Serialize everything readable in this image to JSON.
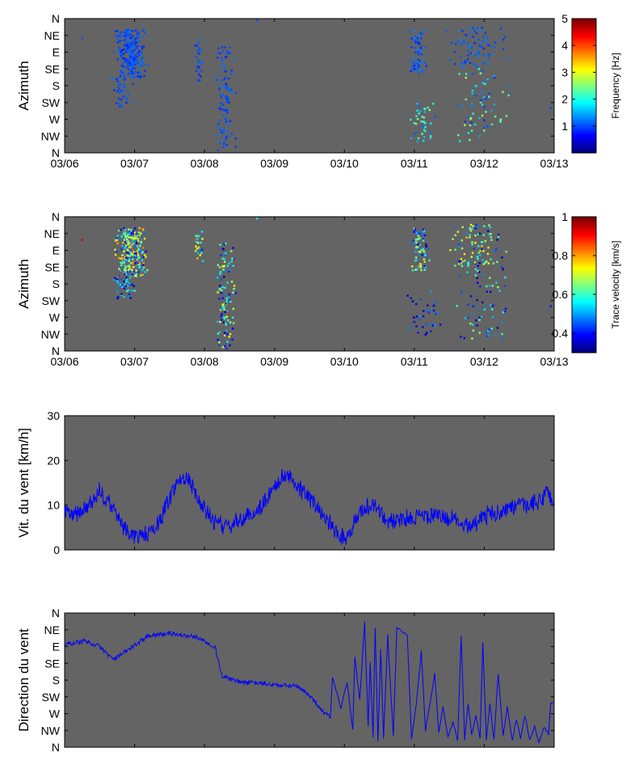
{
  "chart_data": [
    {
      "type": "scatter",
      "ylabel": "Azimuth",
      "x_tick_labels": [
        "03/06",
        "03/07",
        "03/08",
        "03/09",
        "03/10",
        "03/11",
        "03/12",
        "03/13"
      ],
      "y_tick_labels": [
        "N",
        "NW",
        "W",
        "SW",
        "S",
        "SE",
        "E",
        "NE",
        "N"
      ],
      "xlim_days": [
        6,
        13
      ],
      "ylim_deg": [
        0,
        360
      ],
      "colorbar": {
        "label": "Frequency [Hz]",
        "range": [
          0,
          5
        ],
        "ticks": [
          "1",
          "2",
          "3",
          "4",
          "5"
        ],
        "colormap": "jet"
      },
      "clusters": [
        {
          "x": [
            6.7,
            7.2
          ],
          "y": [
            200,
            330
          ],
          "c": [
            0.8,
            1.2
          ],
          "n": 260
        },
        {
          "x": [
            6.65,
            7.05
          ],
          "y": [
            120,
            200
          ],
          "c": [
            0.8,
            1.2
          ],
          "n": 40
        },
        {
          "x": [
            7.85,
            7.98
          ],
          "y": [
            190,
            320
          ],
          "c": [
            0.8,
            1.2
          ],
          "n": 25
        },
        {
          "x": [
            8.15,
            8.45
          ],
          "y": [
            5,
            290
          ],
          "c": [
            0.8,
            1.2
          ],
          "n": 110
        },
        {
          "x": [
            10.9,
            11.2
          ],
          "y": [
            210,
            330
          ],
          "c": [
            0.8,
            1.3
          ],
          "n": 70
        },
        {
          "x": [
            10.9,
            11.35
          ],
          "y": [
            30,
            140
          ],
          "c": [
            1.0,
            2.6
          ],
          "n": 40
        },
        {
          "x": [
            11.4,
            12.4
          ],
          "y": [
            230,
            340
          ],
          "c": [
            0.8,
            1.3
          ],
          "n": 90
        },
        {
          "x": [
            11.55,
            12.4
          ],
          "y": [
            30,
            230
          ],
          "c": [
            0.8,
            2.8
          ],
          "n": 70
        }
      ],
      "isolated_points": [
        [
          6.25,
          307,
          1.0
        ],
        [
          8.75,
          355,
          1.0
        ],
        [
          8.45,
          160,
          1.0
        ],
        [
          12.95,
          120,
          1.0
        ],
        [
          13.0,
          283,
          1.0
        ]
      ]
    },
    {
      "type": "scatter",
      "ylabel": "Azimuth",
      "x_tick_labels": [
        "03/06",
        "03/07",
        "03/08",
        "03/09",
        "03/10",
        "03/11",
        "03/12",
        "03/13"
      ],
      "y_tick_labels": [
        "N",
        "NW",
        "W",
        "SW",
        "S",
        "SE",
        "E",
        "NE",
        "N"
      ],
      "xlim_days": [
        6,
        13
      ],
      "ylim_deg": [
        0,
        360
      ],
      "colorbar": {
        "label": "Trace velocity [km/s]",
        "range": [
          0.3,
          1.0
        ],
        "ticks": [
          "0.4",
          "0.6",
          "0.8",
          "1"
        ],
        "colormap": "jet"
      },
      "clusters": [
        {
          "x": [
            6.7,
            7.2
          ],
          "y": [
            200,
            330
          ],
          "c": [
            0.35,
            0.85
          ],
          "n": 260
        },
        {
          "x": [
            6.65,
            7.05
          ],
          "y": [
            140,
            200
          ],
          "c": [
            0.32,
            0.6
          ],
          "n": 40
        },
        {
          "x": [
            7.85,
            7.98
          ],
          "y": [
            240,
            320
          ],
          "c": [
            0.4,
            0.8
          ],
          "n": 25
        },
        {
          "x": [
            8.15,
            8.45
          ],
          "y": [
            5,
            290
          ],
          "c": [
            0.32,
            0.75
          ],
          "n": 110
        },
        {
          "x": [
            10.9,
            11.25
          ],
          "y": [
            210,
            330
          ],
          "c": [
            0.32,
            0.8
          ],
          "n": 70
        },
        {
          "x": [
            10.9,
            11.4
          ],
          "y": [
            40,
            160
          ],
          "c": [
            0.32,
            0.5
          ],
          "n": 40
        },
        {
          "x": [
            11.4,
            12.4
          ],
          "y": [
            230,
            340
          ],
          "c": [
            0.32,
            0.8
          ],
          "n": 90
        },
        {
          "x": [
            11.55,
            12.4
          ],
          "y": [
            30,
            230
          ],
          "c": [
            0.32,
            0.7
          ],
          "n": 70
        }
      ],
      "isolated_points": [
        [
          6.25,
          298,
          0.95
        ],
        [
          8.75,
          355,
          0.55
        ],
        [
          8.45,
          155,
          0.4
        ],
        [
          12.95,
          120,
          0.4
        ],
        [
          13.0,
          275,
          0.4
        ]
      ]
    },
    {
      "type": "line",
      "ylabel": "Vit. du vent [km/h]",
      "y_tick_labels": [
        "0",
        "10",
        "20",
        "30"
      ],
      "xlim_days": [
        6,
        13
      ],
      "ylim": [
        0,
        30
      ],
      "line_color": "#0000ff",
      "noise": 1.3,
      "x": [
        6.0,
        6.2,
        6.4,
        6.5,
        6.7,
        6.85,
        7.0,
        7.2,
        7.35,
        7.45,
        7.6,
        7.75,
        7.95,
        8.1,
        8.3,
        8.5,
        8.7,
        8.9,
        9.0,
        9.2,
        9.35,
        9.5,
        9.7,
        9.85,
        9.95,
        10.05,
        10.2,
        10.4,
        10.6,
        10.8,
        11.0,
        11.2,
        11.4,
        11.6,
        11.8,
        12.0,
        12.2,
        12.4,
        12.6,
        12.8,
        12.9,
        13.0
      ],
      "y": [
        8,
        8,
        10.5,
        13,
        9,
        5,
        3,
        3.5,
        6,
        10,
        15,
        16.5,
        10,
        7,
        5,
        6.5,
        8,
        11.5,
        14.5,
        17,
        14,
        11.5,
        8,
        5,
        3,
        3,
        8,
        10.5,
        6.5,
        6.5,
        7.5,
        7.5,
        7.5,
        6.5,
        5.5,
        7.5,
        8.5,
        9.5,
        10,
        10.5,
        13.5,
        10
      ]
    },
    {
      "type": "line",
      "ylabel": "Direction du vent",
      "y_tick_labels": [
        "N",
        "NW",
        "W",
        "SW",
        "S",
        "SE",
        "E",
        "NE",
        "N"
      ],
      "xlim_days": [
        6,
        13
      ],
      "ylim_deg": [
        0,
        360
      ],
      "line_color": "#0000ff",
      "x": [
        6.0,
        6.3,
        6.5,
        6.7,
        6.9,
        7.2,
        7.5,
        7.9,
        8.15,
        8.25,
        8.5,
        8.8,
        9.1,
        9.3,
        9.5,
        9.7,
        9.8
      ],
      "y": [
        275,
        285,
        270,
        235,
        260,
        300,
        305,
        295,
        270,
        190,
        175,
        172,
        165,
        165,
        140,
        95,
        80
      ],
      "oscillation": {
        "x_start": 9.8,
        "x_end": 12.95,
        "events": [
          {
            "x": 9.83,
            "to": 190
          },
          {
            "x": 9.95,
            "to": 105
          },
          {
            "x": 10.04,
            "to": 175
          },
          {
            "x": 10.12,
            "to": 45
          },
          {
            "x": 10.15,
            "to": 240
          },
          {
            "x": 10.22,
            "to": 125
          },
          {
            "x": 10.29,
            "to": 335
          },
          {
            "x": 10.34,
            "to": 55
          },
          {
            "x": 10.37,
            "to": 225
          },
          {
            "x": 10.41,
            "to": 25
          },
          {
            "x": 10.44,
            "to": 320
          },
          {
            "x": 10.48,
            "to": 15
          },
          {
            "x": 10.52,
            "to": 265
          },
          {
            "x": 10.56,
            "to": 25
          },
          {
            "x": 10.62,
            "to": 300
          },
          {
            "x": 10.7,
            "to": 30
          },
          {
            "x": 10.75,
            "to": 320
          },
          {
            "x": 10.9,
            "to": 300
          },
          {
            "x": 10.96,
            "to": 25
          },
          {
            "x": 11.03,
            "to": 120
          },
          {
            "x": 11.1,
            "to": 255
          },
          {
            "x": 11.16,
            "to": 45
          },
          {
            "x": 11.22,
            "to": 115
          },
          {
            "x": 11.29,
            "to": 195
          },
          {
            "x": 11.35,
            "to": 40
          },
          {
            "x": 11.41,
            "to": 110
          },
          {
            "x": 11.48,
            "to": 25
          },
          {
            "x": 11.55,
            "to": 65
          },
          {
            "x": 11.62,
            "to": 20
          },
          {
            "x": 11.67,
            "to": 295
          },
          {
            "x": 11.72,
            "to": 20
          },
          {
            "x": 11.77,
            "to": 120
          },
          {
            "x": 11.82,
            "to": 30
          },
          {
            "x": 11.88,
            "to": 85
          },
          {
            "x": 11.94,
            "to": 25
          },
          {
            "x": 11.98,
            "to": 285
          },
          {
            "x": 12.03,
            "to": 20
          },
          {
            "x": 12.08,
            "to": 115
          },
          {
            "x": 12.14,
            "to": 20
          },
          {
            "x": 12.2,
            "to": 195
          },
          {
            "x": 12.27,
            "to": 30
          },
          {
            "x": 12.33,
            "to": 110
          },
          {
            "x": 12.4,
            "to": 20
          },
          {
            "x": 12.46,
            "to": 75
          },
          {
            "x": 12.52,
            "to": 25
          },
          {
            "x": 12.58,
            "to": 85
          },
          {
            "x": 12.65,
            "to": 20
          },
          {
            "x": 12.72,
            "to": 55
          },
          {
            "x": 12.78,
            "to": 10
          },
          {
            "x": 12.85,
            "to": 55
          },
          {
            "x": 12.92,
            "to": 35
          },
          {
            "x": 12.95,
            "to": 120
          },
          {
            "x": 12.99,
            "to": 120
          }
        ]
      }
    }
  ]
}
